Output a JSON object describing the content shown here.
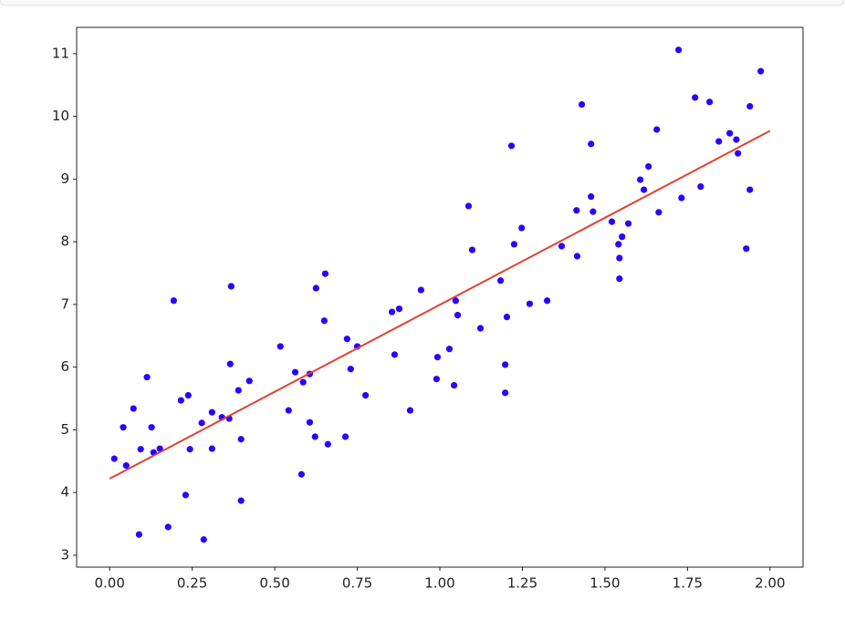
{
  "chart_data": {
    "type": "scatter",
    "xlim": [
      -0.1,
      2.1
    ],
    "ylim": [
      2.81,
      11.42
    ],
    "xticks": [
      {
        "value": 0,
        "label": "0.00"
      },
      {
        "value": 0.25,
        "label": "0.25"
      },
      {
        "value": 0.5,
        "label": "0.50"
      },
      {
        "value": 0.75,
        "label": "0.75"
      },
      {
        "value": 1,
        "label": "1.00"
      },
      {
        "value": 1.25,
        "label": "1.25"
      },
      {
        "value": 1.5,
        "label": "1.50"
      },
      {
        "value": 1.75,
        "label": "1.75"
      },
      {
        "value": 2,
        "label": "2.00"
      }
    ],
    "yticks": [
      3,
      4,
      5,
      6,
      7,
      8,
      9,
      10,
      11
    ],
    "grid": false,
    "series": [
      {
        "mode": "markers",
        "color": "#2a00ff",
        "x": [
          0.014,
          0.041,
          0.05,
          0.072,
          0.089,
          0.094,
          0.113,
          0.127,
          0.133,
          0.152,
          0.177,
          0.194,
          0.216,
          0.23,
          0.238,
          0.243,
          0.279,
          0.285,
          0.31,
          0.31,
          0.34,
          0.362,
          0.365,
          0.368,
          0.39,
          0.398,
          0.398,
          0.423,
          0.517,
          0.542,
          0.562,
          0.581,
          0.586,
          0.606,
          0.606,
          0.622,
          0.625,
          0.65,
          0.653,
          0.661,
          0.714,
          0.719,
          0.73,
          0.75,
          0.775,
          0.855,
          0.863,
          0.877,
          0.91,
          0.943,
          0.99,
          0.993,
          1.029,
          1.043,
          1.048,
          1.054,
          1.087,
          1.098,
          1.123,
          1.184,
          1.198,
          1.198,
          1.203,
          1.217,
          1.225,
          1.248,
          1.272,
          1.325,
          1.369,
          1.414,
          1.416,
          1.43,
          1.458,
          1.458,
          1.464,
          1.521,
          1.541,
          1.544,
          1.544,
          1.552,
          1.571,
          1.607,
          1.618,
          1.632,
          1.657,
          1.663,
          1.723,
          1.732,
          1.773,
          1.79,
          1.817,
          1.845,
          1.878,
          1.898,
          1.903,
          1.928,
          1.939,
          1.939,
          1.972
        ],
        "values": [
          4.54,
          5.04,
          4.43,
          5.34,
          3.33,
          4.69,
          5.84,
          5.04,
          4.64,
          4.7,
          3.45,
          7.06,
          5.47,
          3.96,
          5.55,
          4.69,
          5.11,
          3.25,
          5.28,
          4.7,
          5.2,
          5.18,
          6.05,
          7.29,
          5.63,
          4.85,
          3.87,
          5.78,
          6.33,
          5.31,
          5.92,
          4.29,
          5.76,
          5.89,
          5.12,
          4.89,
          7.26,
          6.74,
          7.49,
          4.77,
          4.89,
          6.45,
          5.97,
          6.33,
          5.55,
          6.88,
          6.2,
          6.93,
          5.31,
          7.23,
          5.81,
          6.16,
          6.29,
          5.71,
          7.06,
          6.83,
          8.57,
          7.87,
          6.62,
          7.38,
          6.04,
          5.59,
          6.8,
          9.53,
          7.96,
          8.22,
          7.01,
          7.06,
          7.93,
          8.5,
          7.77,
          10.19,
          9.56,
          8.72,
          8.48,
          8.32,
          7.96,
          7.74,
          7.41,
          8.08,
          8.29,
          8.99,
          8.83,
          9.2,
          9.79,
          8.47,
          11.06,
          8.7,
          10.3,
          8.88,
          10.23,
          9.6,
          9.73,
          9.63,
          9.41,
          7.89,
          10.16,
          8.83,
          10.72
        ]
      },
      {
        "mode": "line",
        "color": "#e2412e",
        "x": [
          0,
          2
        ],
        "values": [
          4.22,
          9.77
        ]
      }
    ]
  }
}
